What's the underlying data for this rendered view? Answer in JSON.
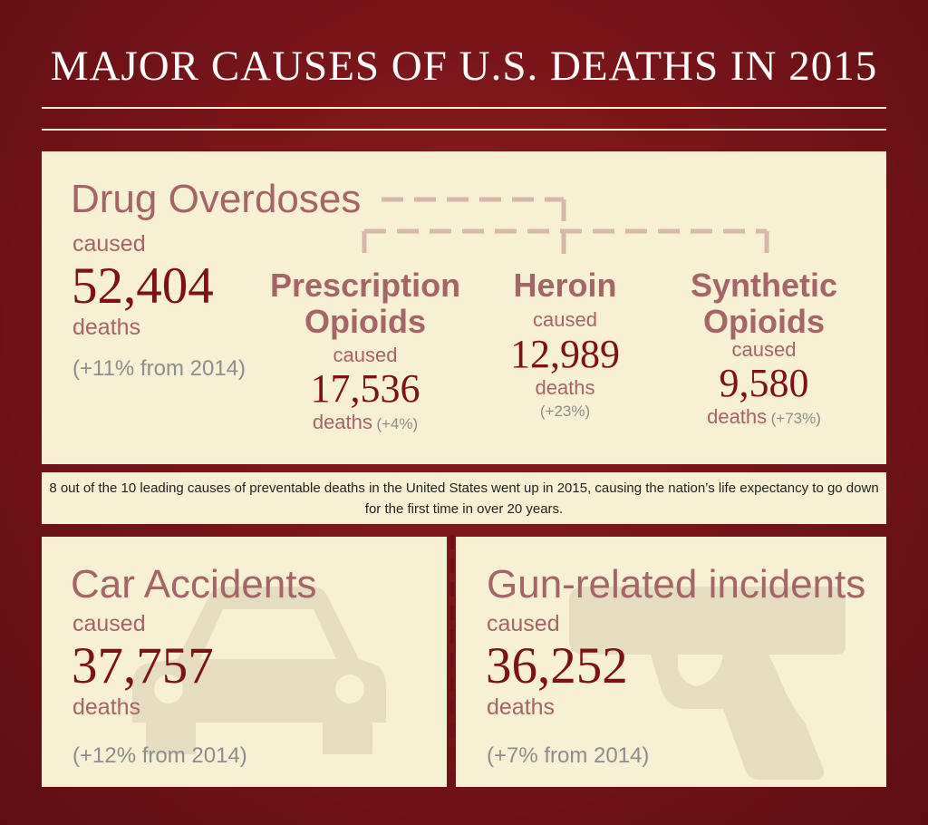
{
  "title": "MAJOR CAUSES OF U.S. DEATHS IN 2015",
  "drug": {
    "heading": "Drug Overdoses",
    "caused": "caused",
    "count": "52,404",
    "deaths": "deaths",
    "change": "(+11% from 2014)"
  },
  "subcauses": [
    {
      "line1": "Prescription",
      "line2": "Opioids",
      "caused": "caused",
      "count": "17,536",
      "deaths": "deaths",
      "change": "(+4%)"
    },
    {
      "line1": "Heroin",
      "caused": "caused",
      "count": "12,989",
      "deaths": "deaths",
      "change": "(+23%)"
    },
    {
      "line1": "Synthetic",
      "line2": "Opioids",
      "caused": "caused",
      "count": "9,580",
      "deaths": "deaths",
      "change": "(+73%)"
    }
  ],
  "note": "8 out of the 10 leading causes of preventable deaths in the United States went up in 2015, causing the nation’s life expectancy to go down for the first time in over 20 years.",
  "car": {
    "heading": "Car Accidents",
    "caused": "caused",
    "count": "37,757",
    "deaths": "deaths",
    "change": "(+12% from 2014)",
    "icon": "car-icon"
  },
  "gun": {
    "heading": "Gun-related incidents",
    "caused": "caused",
    "count": "36,252",
    "deaths": "deaths",
    "change": "(+7% from 2014)",
    "icon": "gun-icon"
  },
  "colors": {
    "background": "#741418",
    "panel": "#f7f0d2",
    "heading": "#a56467",
    "number": "#7c1119"
  }
}
